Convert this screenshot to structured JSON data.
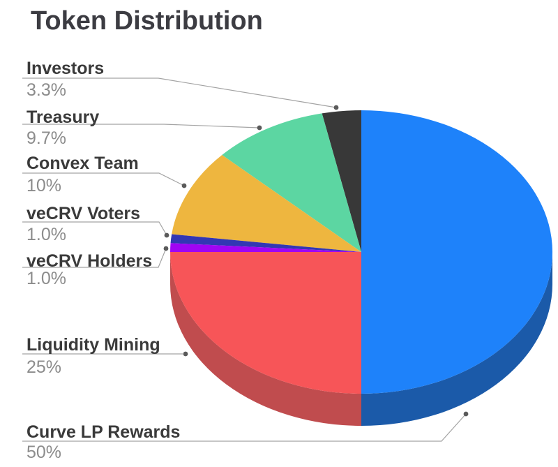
{
  "title": "Token Distribution",
  "chart_data": {
    "type": "pie",
    "title": "Token Distribution",
    "style": "3d",
    "unit": "%",
    "start_angle_deg": -90,
    "direction": "counterclockwise",
    "legend_position": "left",
    "slices": [
      {
        "label": "Curve LP Rewards",
        "value": 50,
        "pct_label": "50%",
        "color": "#1e82fa",
        "side_color": "#1b5aa9"
      },
      {
        "label": "Investors",
        "value": 3.3,
        "pct_label": "3.3%",
        "color": "#383838"
      },
      {
        "label": "Treasury",
        "value": 9.7,
        "pct_label": "9.7%",
        "color": "#5cd6a2"
      },
      {
        "label": "Convex Team",
        "value": 10,
        "pct_label": "10%",
        "color": "#eeb63f"
      },
      {
        "label": "veCRV Voters",
        "value": 1.0,
        "pct_label": "1.0%",
        "color": "#3337b3"
      },
      {
        "label": "veCRV Holders",
        "value": 1.0,
        "pct_label": "1.0%",
        "color": "#a004f3"
      },
      {
        "label": "Liquidity Mining",
        "value": 25,
        "pct_label": "25%",
        "color": "#f75558",
        "side_color": "#c04c4e"
      }
    ],
    "leader_line_color": "#a3a3a3",
    "leader_dot_color": "#5a5a5a"
  }
}
